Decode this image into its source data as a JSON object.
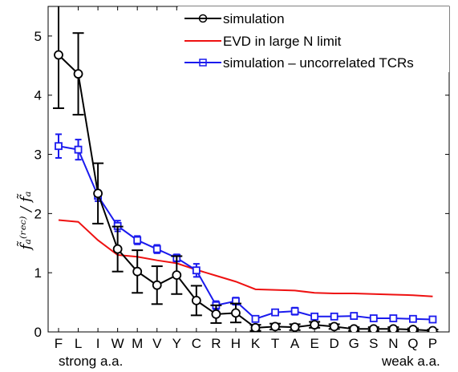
{
  "chart_data": {
    "type": "line",
    "categories": [
      "F",
      "L",
      "I",
      "W",
      "M",
      "V",
      "Y",
      "C",
      "R",
      "H",
      "K",
      "T",
      "A",
      "E",
      "D",
      "G",
      "S",
      "N",
      "Q",
      "P"
    ],
    "xlabel_left": "strong a.a.",
    "xlabel_right": "weak a.a.",
    "ylabel": "f̃ₐ⁽ʳᵉᶜ⁾ / f̃ₐ",
    "ylim": [
      0,
      5.5
    ],
    "yticks": [
      "0",
      "1",
      "2",
      "3",
      "4",
      "5"
    ],
    "grid": false,
    "legend_position": "top-right",
    "series": [
      {
        "name": "simulation",
        "color": "#000000",
        "marker": "circle",
        "values": [
          4.68,
          4.36,
          2.34,
          1.4,
          1.02,
          0.79,
          0.96,
          0.53,
          0.3,
          0.32,
          0.07,
          0.09,
          0.08,
          0.12,
          0.09,
          0.05,
          0.05,
          0.05,
          0.04,
          0.02
        ],
        "errors": [
          0.9,
          0.69,
          0.51,
          0.38,
          0.36,
          0.32,
          0.32,
          0.25,
          0.15,
          0.16,
          0.05,
          0.05,
          0.05,
          0.05,
          0.04,
          0.03,
          0.03,
          0.03,
          0.02,
          0.02
        ]
      },
      {
        "name": "EVD in large N limit",
        "color": "#ee1111",
        "marker": "none",
        "values": [
          1.89,
          1.86,
          1.55,
          1.3,
          1.27,
          1.21,
          1.16,
          1.05,
          0.95,
          0.85,
          0.72,
          0.71,
          0.7,
          0.66,
          0.65,
          0.65,
          0.64,
          0.63,
          0.62,
          0.6
        ]
      },
      {
        "name": "simulation – uncorrelated TCRs",
        "color": "#1a1aee",
        "marker": "square",
        "values": [
          3.14,
          3.08,
          2.3,
          1.79,
          1.55,
          1.4,
          1.25,
          1.04,
          0.45,
          0.52,
          0.22,
          0.33,
          0.35,
          0.26,
          0.26,
          0.27,
          0.23,
          0.23,
          0.22,
          0.21
        ],
        "errors": [
          0.2,
          0.17,
          0.09,
          0.09,
          0.07,
          0.07,
          0.06,
          0.11,
          0.07,
          0.06,
          0.03,
          0.04,
          0.06,
          0.04,
          0.04,
          0.04,
          0.03,
          0.03,
          0.03,
          0.03
        ]
      }
    ]
  }
}
